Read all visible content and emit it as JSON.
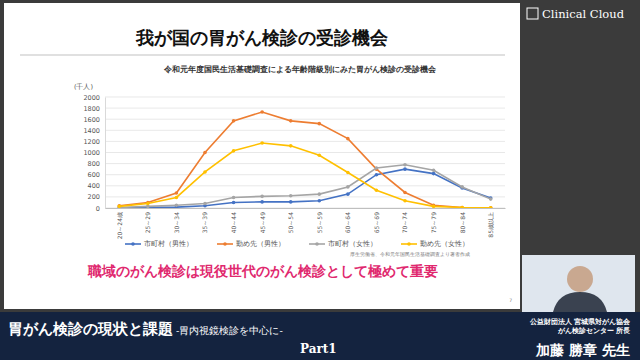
{
  "slide": {
    "title": "我が国の胃がん検診の受診機会",
    "highlight": "職域のがん検診は現役世代のがん検診として極めて重要",
    "page_number": "7",
    "logo": "Clinical Cloud",
    "banner": {
      "title": "胃がん検診の現状と課題",
      "subtitle": "-胃内視鏡検診を中心に-",
      "part": "Part1",
      "affiliation": [
        "公益財団法人 宮城県対がん協会",
        "がん検診センター 所長"
      ],
      "presenter": "加藤 勝章 先生"
    }
  },
  "chart_data": {
    "type": "line",
    "title": "令和元年度国民生活基礎調査による年齢階級別にみた胃がん検診の受診機会",
    "y_label": "(千人)",
    "source": "厚生労働省、令和元年国民生活基礎調査より著者作成",
    "categories": [
      "20～24歳",
      "25～29",
      "30～34",
      "35～39",
      "40～44",
      "45～49",
      "50～54",
      "55～59",
      "60～64",
      "65～69",
      "70～74",
      "75～79",
      "80～84",
      "85歳以上"
    ],
    "series": [
      {
        "name": "市町村（男性）",
        "color": "#4472c4",
        "values": [
          5,
          10,
          15,
          40,
          100,
          110,
          110,
          130,
          250,
          600,
          700,
          620,
          360,
          180
        ]
      },
      {
        "name": "勤め先（男性）",
        "color": "#ed7d31",
        "values": [
          40,
          100,
          270,
          1000,
          1570,
          1730,
          1570,
          1520,
          1250,
          700,
          280,
          50,
          10,
          5
        ]
      },
      {
        "name": "市町村（女性）",
        "color": "#a5a5a5",
        "values": [
          10,
          30,
          50,
          80,
          190,
          210,
          220,
          250,
          380,
          720,
          780,
          680,
          380,
          160
        ]
      },
      {
        "name": "勤め先（女性）",
        "color": "#ffc000",
        "values": [
          30,
          80,
          190,
          650,
          1030,
          1170,
          1120,
          950,
          640,
          320,
          130,
          30,
          10,
          5
        ]
      }
    ],
    "ylim": [
      0,
      2000
    ],
    "yticks": [
      0,
      200,
      400,
      600,
      800,
      1000,
      1200,
      1400,
      1600,
      1800,
      2000
    ],
    "grid": true,
    "legend": "bottom",
    "marker": "circle"
  }
}
